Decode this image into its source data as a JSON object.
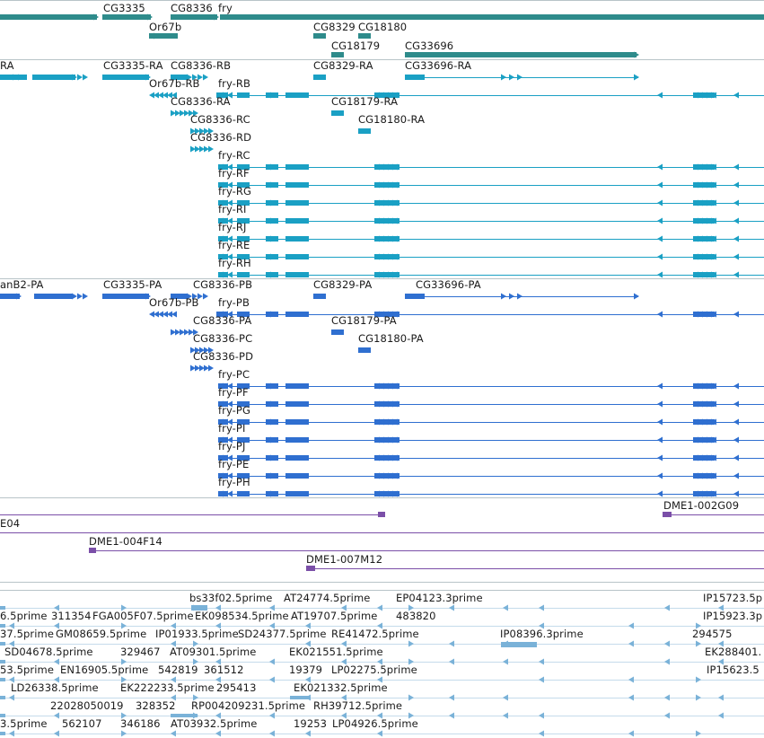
{
  "colors": {
    "gene": "#2e8b8b",
    "mrna": "#1aa0c4",
    "cds": "#2f6fd0",
    "clone": "#7b4fa8",
    "est": "#7ab2d8",
    "separator": "#b8c4c8"
  },
  "tracks": {
    "genes": {
      "labels": [
        "CG3335",
        "CG8336",
        "fry",
        "Or67b",
        "CG8329",
        "CG18180",
        "CG18179",
        "CG33696"
      ]
    },
    "transcripts": {
      "labels": [
        "RA",
        "CG3335-RA",
        "CG8336-RB",
        "CG8329-RA",
        "CG33696-RA",
        "Or67b-RB",
        "fry-RB",
        "CG8336-RA",
        "CG18179-RA",
        "CG8336-RC",
        "CG18180-RA",
        "CG8336-RD",
        "fry-RC",
        "fry-RF",
        "fry-RG",
        "fry-RI",
        "fry-RJ",
        "fry-RE",
        "fry-RH"
      ]
    },
    "proteins": {
      "labels": [
        "anB2-PA",
        "CG3335-PA",
        "CG8336-PB",
        "CG8329-PA",
        "CG33696-PA",
        "Or67b-PB",
        "fry-PB",
        "CG8336-PA",
        "CG18179-PA",
        "CG8336-PC",
        "CG18180-PA",
        "CG8336-PD",
        "fry-PC",
        "fry-PF",
        "fry-PG",
        "fry-PI",
        "fry-PJ",
        "fry-PE",
        "fry-PH"
      ]
    },
    "clones": {
      "labels": [
        "DME1-002G09",
        "E04",
        "DME1-004F14",
        "DME1-007M12"
      ]
    },
    "ests": {
      "labels": [
        "bs33f02.5prime",
        "AT24774.5prime",
        "EP04123.3prime",
        "IP15723.5p",
        "6.5prime",
        "311354",
        "FGA005F07.5prime",
        "EK098534.5prime",
        "AT19707.5prime",
        "483820",
        "IP15923.3p",
        "37.5prime",
        "GM08659.5prime",
        "IP01933.5prime",
        "SD24377.5prime",
        "RE41472.5prime",
        "IP08396.3prime",
        "294575",
        "SD04678.5prime",
        "329467",
        "AT09301.5prime",
        "EK021551.5prime",
        "EK288401.",
        "53.5prime",
        "EN16905.5prime",
        "542819",
        "361512",
        "19379",
        "LP02275.5prime",
        "IP15623.5",
        "LD26338.5prime",
        "EK222233.5prime",
        "295413",
        "EK021332.5prime",
        "22028050019",
        "328352",
        "RP004209231.5prime",
        "RH39712.5prime",
        "3.5prime",
        "562107",
        "346186",
        "AT03932.5prime",
        "19253",
        "LP04926.5prime"
      ]
    }
  }
}
